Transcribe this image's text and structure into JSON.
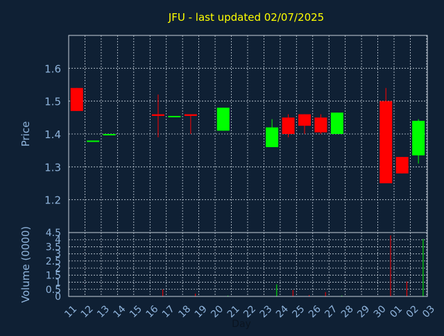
{
  "chart_data": [
    {
      "type": "candlestick",
      "title": "JFU - last updated 02/07/2025",
      "ylabel": "Price",
      "xlabel": "",
      "ylim": [
        1.1,
        1.7
      ],
      "yticks": [
        "1.2",
        "1.3",
        "1.4",
        "1.5",
        "1.6"
      ],
      "grid": true,
      "colors": {
        "up": "#00ff00",
        "down": "#ff0000",
        "background": "#0f2034",
        "grid": "#c8d2dc",
        "text": "#8fb4dc",
        "title": "#ffff00"
      },
      "candles": [
        {
          "day": "11",
          "open": 1.54,
          "high": 1.54,
          "low": 1.47,
          "close": 1.47
        },
        {
          "day": "12",
          "open": 1.38,
          "high": 1.38,
          "low": 1.38,
          "close": 1.38
        },
        {
          "day": "13",
          "open": 1.4,
          "high": 1.4,
          "low": 1.4,
          "close": 1.4
        },
        {
          "day": "16",
          "open": 1.46,
          "high": 1.52,
          "low": 1.39,
          "close": 1.455
        },
        {
          "day": "17",
          "open": 1.455,
          "high": 1.455,
          "low": 1.455,
          "close": 1.455
        },
        {
          "day": "18",
          "open": 1.46,
          "high": 1.46,
          "low": 1.4,
          "close": 1.455
        },
        {
          "day": "20",
          "open": 1.41,
          "high": 1.48,
          "low": 1.41,
          "close": 1.48
        },
        {
          "day": "23",
          "open": 1.36,
          "high": 1.445,
          "low": 1.36,
          "close": 1.42
        },
        {
          "day": "24",
          "open": 1.45,
          "high": 1.46,
          "low": 1.39,
          "close": 1.4
        },
        {
          "day": "25",
          "open": 1.46,
          "high": 1.46,
          "low": 1.4,
          "close": 1.425
        },
        {
          "day": "26",
          "open": 1.45,
          "high": 1.46,
          "low": 1.4,
          "close": 1.405
        },
        {
          "day": "27",
          "open": 1.4,
          "high": 1.465,
          "low": 1.4,
          "close": 1.465
        },
        {
          "day": "30",
          "open": 1.5,
          "high": 1.54,
          "low": 1.25,
          "close": 1.25
        },
        {
          "day": "01",
          "open": 1.33,
          "high": 1.33,
          "low": 1.28,
          "close": 1.28
        },
        {
          "day": "02",
          "open": 1.335,
          "high": 1.445,
          "low": 1.31,
          "close": 1.44
        }
      ]
    },
    {
      "type": "bar",
      "ylabel": "Volume (0000)",
      "xlabel": "Day",
      "ylim": [
        0,
        4.5
      ],
      "yticks": [
        "0",
        "0.5",
        "1",
        "1.5",
        "2",
        "2.5",
        "3",
        "3.5",
        "4",
        "4.5"
      ],
      "categories": [
        "11",
        "12",
        "13",
        "14",
        "15",
        "16",
        "17",
        "18",
        "19",
        "20",
        "21",
        "22",
        "23",
        "24",
        "25",
        "26",
        "27",
        "28",
        "29",
        "30",
        "01",
        "02",
        "03"
      ],
      "values": [
        0,
        0,
        0.02,
        0,
        0,
        0.5,
        0.02,
        0.2,
        0,
        0.06,
        0,
        0,
        0.85,
        0.45,
        0.1,
        0.3,
        0.06,
        0,
        0,
        4.3,
        1.05,
        4.05,
        0
      ],
      "bar_colors": [
        "#ff0000",
        "#00ff00",
        "#00ff00",
        "#ff0000",
        "#ff0000",
        "#ff0000",
        "#00ff00",
        "#ff0000",
        "#ff0000",
        "#00ff00",
        "#ff0000",
        "#ff0000",
        "#00ff00",
        "#ff0000",
        "#ff0000",
        "#ff0000",
        "#00ff00",
        "#ff0000",
        "#ff0000",
        "#ff0000",
        "#ff0000",
        "#00ff00",
        "#ff0000"
      ]
    }
  ]
}
